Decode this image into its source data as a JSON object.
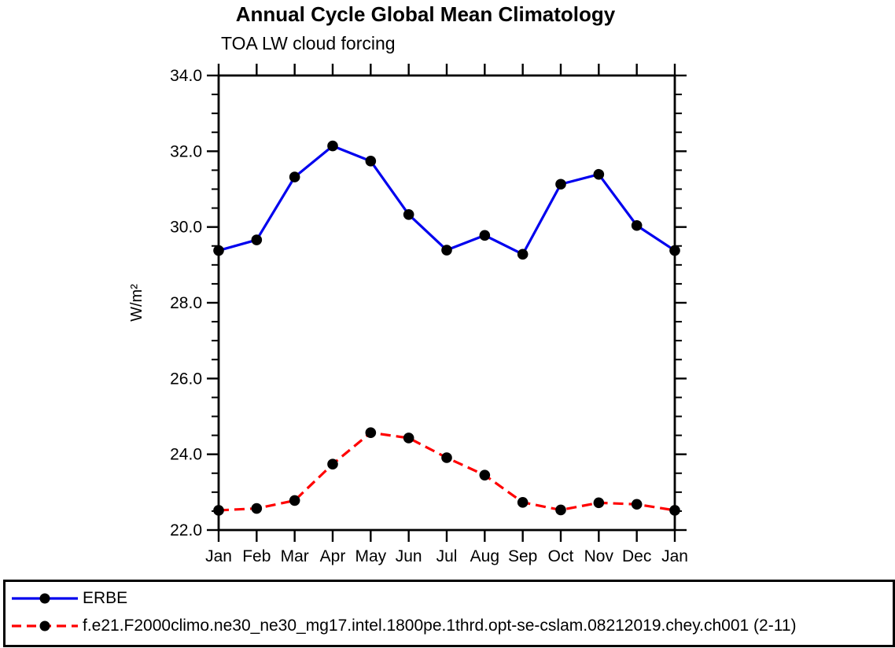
{
  "chart_data": {
    "type": "line",
    "title": "Annual Cycle Global Mean Climatology",
    "subtitle": "TOA LW cloud forcing",
    "ylabel": "W/m²",
    "xlabel": "",
    "categories": [
      "Jan",
      "Feb",
      "Mar",
      "Apr",
      "May",
      "Jun",
      "Jul",
      "Aug",
      "Sep",
      "Oct",
      "Nov",
      "Dec",
      "Jan"
    ],
    "series": [
      {
        "name": "ERBE",
        "color": "#0000ee",
        "style": "solid",
        "marker_color": "#000000",
        "values": [
          29.38,
          29.66,
          31.32,
          32.14,
          31.74,
          30.33,
          29.39,
          29.78,
          29.28,
          31.13,
          31.39,
          30.04,
          29.38
        ]
      },
      {
        "name": "f.e21.F2000climo.ne30_ne30_mg17.intel.1800pe.1thrd.opt-se-cslam.08212019.chey.ch001 (2-11)",
        "color": "#ff0000",
        "style": "dashed",
        "marker_color": "#000000",
        "values": [
          22.52,
          22.57,
          22.78,
          23.74,
          24.57,
          24.43,
          23.91,
          23.45,
          22.73,
          22.53,
          22.72,
          22.68,
          22.52
        ]
      }
    ],
    "ylim": [
      22.0,
      34.0
    ],
    "ytick_major": 2.0,
    "ytick_minor": 0.5,
    "ytick_labels": [
      "22.0",
      "24.0",
      "26.0",
      "28.0",
      "30.0",
      "32.0",
      "34.0"
    ],
    "grid": false,
    "axis_color": "#000000",
    "legend_position": "bottom"
  }
}
